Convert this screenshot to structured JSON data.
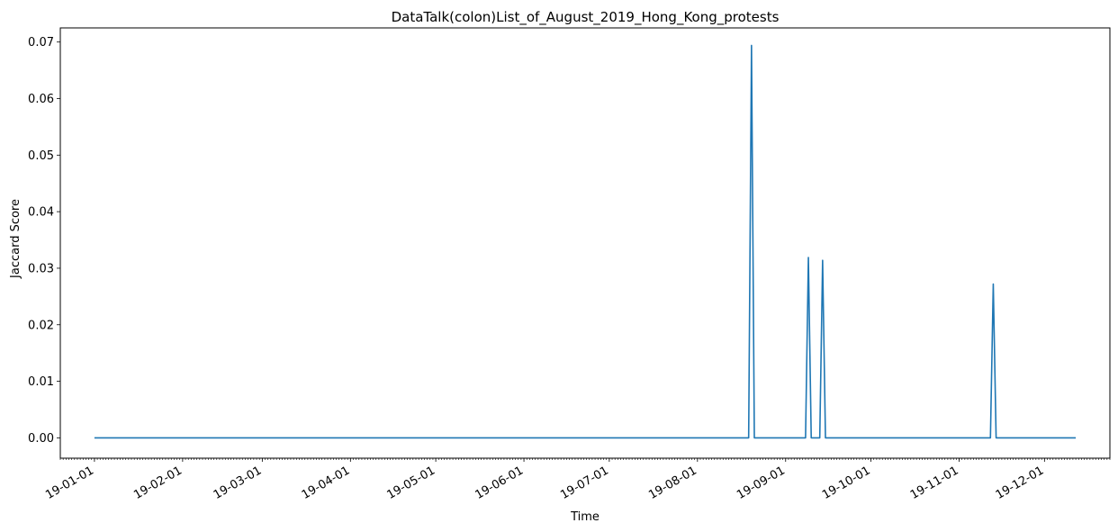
{
  "chart_data": {
    "type": "line",
    "title": "DataTalk(colon)List_of_August_2019_Hong_Kong_protests",
    "xlabel": "Time",
    "ylabel": "Jaccard Score",
    "xlim": [
      "2018-12-20",
      "2019-12-24"
    ],
    "ylim": [
      -0.0036,
      0.0725
    ],
    "grid": false,
    "line_color": "#1f77b4",
    "x_ticks": [
      "2019-01-01",
      "2019-02-01",
      "2019-03-01",
      "2019-04-01",
      "2019-05-01",
      "2019-06-01",
      "2019-07-01",
      "2019-08-01",
      "2019-09-01",
      "2019-10-01",
      "2019-11-01",
      "2019-12-01"
    ],
    "x_tick_labels": [
      "19-01-01",
      "19-02-01",
      "19-03-01",
      "19-04-01",
      "19-05-01",
      "19-06-01",
      "19-07-01",
      "19-08-01",
      "19-09-01",
      "19-10-01",
      "19-11-01",
      "19-12-01"
    ],
    "y_ticks": [
      0.0,
      0.01,
      0.02,
      0.03,
      0.04,
      0.05,
      0.06,
      0.07
    ],
    "y_tick_labels": [
      "0.00",
      "0.01",
      "0.02",
      "0.03",
      "0.04",
      "0.05",
      "0.06",
      "0.07"
    ],
    "series": [
      {
        "points": [
          {
            "x": "2019-01-01",
            "y": 0.0
          },
          {
            "x": "2019-08-19",
            "y": 0.0
          },
          {
            "x": "2019-08-20",
            "y": 0.0694
          },
          {
            "x": "2019-08-21",
            "y": 0.0
          },
          {
            "x": "2019-09-08",
            "y": 0.0
          },
          {
            "x": "2019-09-09",
            "y": 0.0319
          },
          {
            "x": "2019-09-10",
            "y": 0.0
          },
          {
            "x": "2019-09-13",
            "y": 0.0
          },
          {
            "x": "2019-09-14",
            "y": 0.0314
          },
          {
            "x": "2019-09-15",
            "y": 0.0
          },
          {
            "x": "2019-11-12",
            "y": 0.0
          },
          {
            "x": "2019-11-13",
            "y": 0.0272
          },
          {
            "x": "2019-11-14",
            "y": 0.0
          },
          {
            "x": "2019-12-12",
            "y": 0.0
          }
        ]
      }
    ]
  }
}
